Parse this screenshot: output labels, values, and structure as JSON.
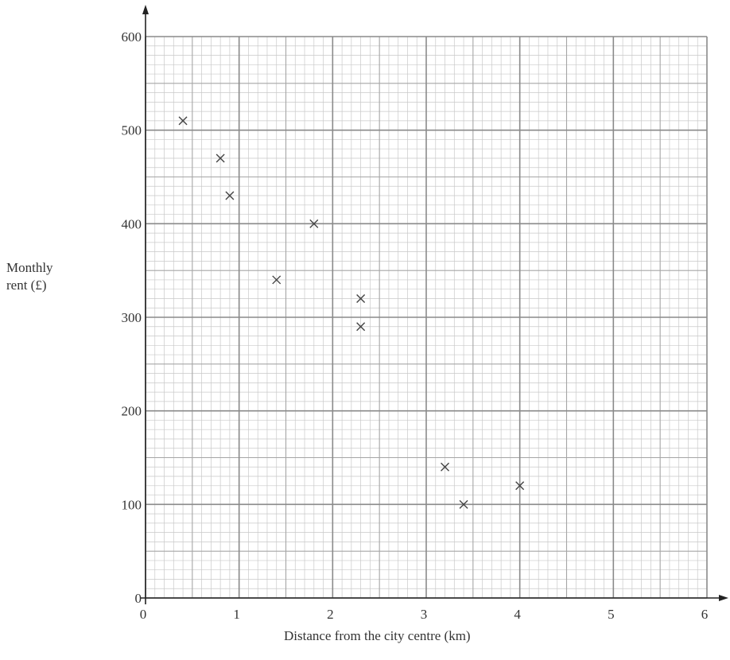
{
  "chart_data": {
    "type": "scatter",
    "title": "",
    "xlabel": "Distance from the city centre (km)",
    "ylabel_lines": [
      "Monthly",
      "rent (£)"
    ],
    "xlim": [
      0,
      6
    ],
    "ylim": [
      0,
      600
    ],
    "xticks": [
      "0",
      "1",
      "2",
      "3",
      "4",
      "5",
      "6"
    ],
    "yticks": [
      "0",
      "100",
      "200",
      "300",
      "400",
      "500",
      "600"
    ],
    "grid": true,
    "marker": "x",
    "points": [
      {
        "x": 0.4,
        "y": 510
      },
      {
        "x": 0.8,
        "y": 470
      },
      {
        "x": 0.9,
        "y": 430
      },
      {
        "x": 1.4,
        "y": 340
      },
      {
        "x": 1.8,
        "y": 400
      },
      {
        "x": 2.3,
        "y": 320
      },
      {
        "x": 2.3,
        "y": 290
      },
      {
        "x": 3.2,
        "y": 140
      },
      {
        "x": 3.4,
        "y": 100
      },
      {
        "x": 4.0,
        "y": 120
      }
    ]
  }
}
